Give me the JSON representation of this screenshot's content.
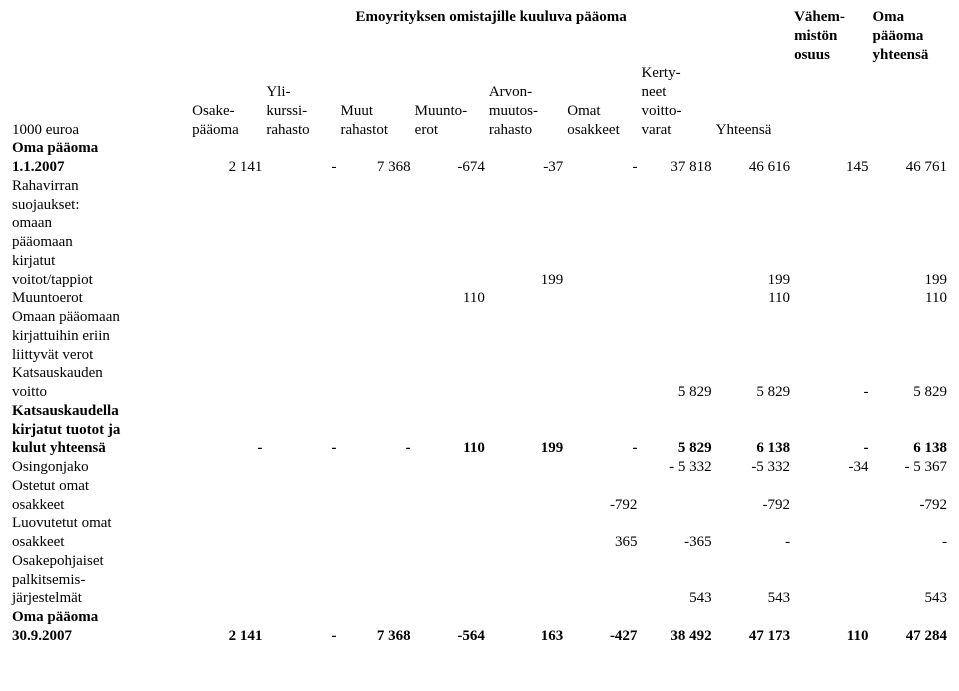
{
  "header": {
    "emoyrityksen": "Emoyrityksen omistajille kuuluva pääoma",
    "vahemmiston": "Vähem-\nmistön\nosuus",
    "oma_paa_yht": "Oma\npääoma\nyhteensä",
    "unit": "1000 euroa",
    "cols": {
      "osakepaaoma": "Osake-\npääoma",
      "ylikurssi": "Yli-\nkurssi-\nrahasto",
      "muut": "Muut\nrahastot",
      "muunto": "Muunto-\nerot",
      "arvonmuutos": "Arvon-\nmuutos-\nrahasto",
      "omat": "Omat\nosakkeet",
      "kertynet": "Kerty-\nneet\nvoitto-\nvarat",
      "yhteensa": "Yhteensä"
    }
  },
  "rows": {
    "oma_paaoma_112007_label": "Oma pääoma\n1.1.2007",
    "oma_paaoma_112007": [
      "2 141",
      "-",
      "7 368",
      "-674",
      "-37",
      "-",
      "37 818",
      "46 616",
      "145",
      "46 761"
    ],
    "rahavirran_label": "Rahavirran\nsuojaukset:\n  omaan\n  pääomaan\n  kirjatut\n  voitot/tappiot",
    "rahavirran": [
      "",
      "",
      "",
      "",
      "199",
      "",
      "",
      "199",
      "",
      "199"
    ],
    "muuntoerot_label": "Muuntoerot",
    "muuntoerot": [
      "",
      "",
      "",
      "110",
      "",
      "",
      "",
      "110",
      "",
      "110"
    ],
    "omaan_verot_label": "Omaan pääomaan\nkirjattuihin eriin\nliittyvät verot",
    "katsauskauden_voitto_label": "Katsauskauden\nvoitto",
    "katsauskauden_voitto": [
      "",
      "",
      "",
      "",
      "",
      "",
      "5 829",
      "5 829",
      "-",
      "5 829"
    ],
    "katsauskaudella_label": "Katsauskaudella\nkirjatut tuotot ja\nkulut yhteensä",
    "katsauskaudella": [
      "-",
      "-",
      "-",
      "110",
      "199",
      "-",
      "5 829",
      "6 138",
      "-",
      "6 138"
    ],
    "osingonjako_label": "Osingonjako",
    "osingonjako": [
      "",
      "",
      "",
      "",
      "",
      "",
      "- 5 332",
      "-5 332",
      "-34",
      "- 5 367"
    ],
    "ostetut_label": "Ostetut omat\nosakkeet",
    "ostetut": [
      "",
      "",
      "",
      "",
      "",
      "-792",
      "",
      "-792",
      "",
      "-792"
    ],
    "luovutetut_label": "Luovutetut omat\nosakkeet",
    "luovutetut": [
      "",
      "",
      "",
      "",
      "",
      "365",
      "-365",
      "-",
      "",
      "-"
    ],
    "osakepohjaiset_label": "Osakepohjaiset\npalkitsemis-\njärjestelmät",
    "osakepohjaiset": [
      "",
      "",
      "",
      "",
      "",
      "",
      "543",
      "543",
      "",
      "543"
    ],
    "oma_paaoma_3092007_label": "Oma pääoma\n30.9.2007",
    "oma_paaoma_3092007": [
      "2 141",
      "-",
      "7 368",
      "-564",
      "163",
      "-427",
      "38 492",
      "47 173",
      "110",
      "47 284"
    ]
  }
}
